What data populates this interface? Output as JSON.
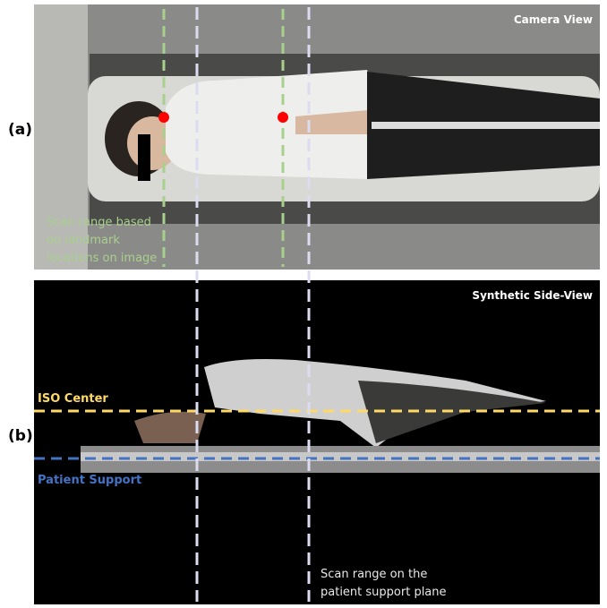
{
  "panels": {
    "a": {
      "label": "(a)",
      "title": "Camera View",
      "annotation": [
        "Scan range based",
        "on landmark",
        "locations on image"
      ]
    },
    "b": {
      "label": "(b)",
      "title": "Synthetic Side-View",
      "iso_center": "ISO Center",
      "patient_support": "Patient Support",
      "annotation": [
        "Scan range on the",
        "patient support plane"
      ]
    }
  }
}
